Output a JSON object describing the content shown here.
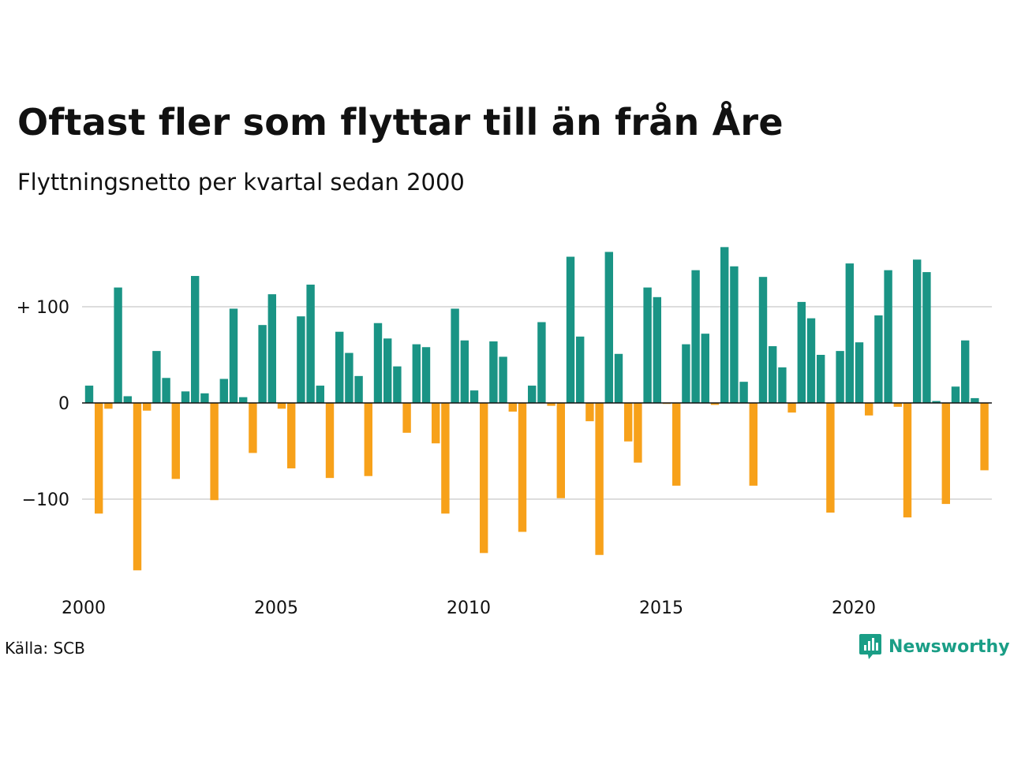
{
  "title": "Oftast fler som flyttar till än från Åre",
  "subtitle": "Flyttningsnetto per kvartal sedan 2000",
  "source": "Källa: SCB",
  "brand": {
    "name": "Newsworthy",
    "icon": "newsworthy-logo-icon"
  },
  "colors": {
    "positive": "#1a9485",
    "negative": "#f7a11a",
    "grid": "#dddddd",
    "zero": "#111111"
  },
  "chart_data": {
    "type": "bar",
    "title": "Oftast fler som flyttar till än från Åre",
    "subtitle": "Flyttningsnetto per kvartal sedan 2000",
    "xlabel": "",
    "ylabel": "",
    "ylim": [
      -185,
      165
    ],
    "grid": true,
    "y_ticks": [
      {
        "value": 100,
        "label": "+ 100"
      },
      {
        "value": 0,
        "label": "0"
      },
      {
        "value": -100,
        "label": "−100"
      }
    ],
    "x_ticks": [
      {
        "value": 2000,
        "label": "2000"
      },
      {
        "value": 2005,
        "label": "2005"
      },
      {
        "value": 2010,
        "label": "2010"
      },
      {
        "value": 2015,
        "label": "2015"
      },
      {
        "value": 2020,
        "label": "2020"
      }
    ],
    "start_year": 2000,
    "periods_per_year": 4,
    "values": [
      18,
      -115,
      -6,
      120,
      7,
      -174,
      -8,
      54,
      26,
      -79,
      12,
      132,
      10,
      -101,
      25,
      98,
      6,
      -52,
      81,
      113,
      -6,
      -68,
      90,
      123,
      18,
      -78,
      74,
      52,
      28,
      -76,
      83,
      67,
      38,
      -31,
      61,
      58,
      -42,
      -115,
      98,
      65,
      13,
      -156,
      64,
      48,
      -9,
      -134,
      18,
      84,
      -3,
      -99,
      152,
      69,
      -19,
      -158,
      157,
      51,
      -40,
      -62,
      120,
      110,
      -1,
      -86,
      61,
      138,
      72,
      -2,
      162,
      142,
      22,
      -86,
      131,
      59,
      37,
      -10,
      105,
      88,
      50,
      -114,
      54,
      145,
      63,
      -13,
      91,
      138,
      -4,
      -119,
      149,
      136,
      2,
      -105,
      17,
      65,
      5,
      -70
    ]
  }
}
